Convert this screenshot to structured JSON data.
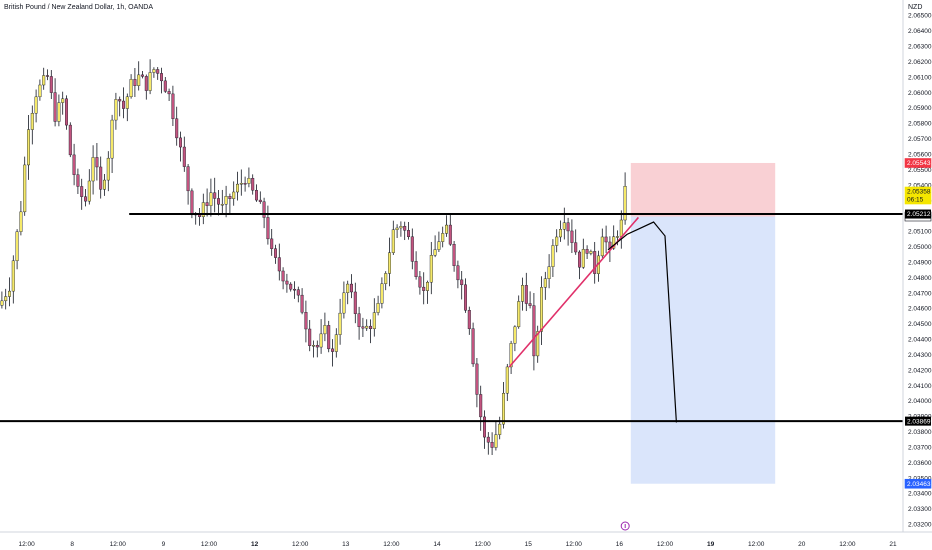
{
  "header": {
    "title": "British Pound / New Zealand Dollar, 1h, OANDA",
    "currency": "NZD"
  },
  "colors": {
    "bull_candle": "#f5e96a",
    "bear_candle": "#c2547f",
    "wick": "#131722",
    "level_line": "#000000",
    "trendline": "#e0306a",
    "stop_zone": "#f8c8cc",
    "target_zone": "#d6e2fb",
    "sell_tag": "#f23645",
    "price_tag": "#f5e600",
    "target_tag": "#2962ff",
    "marker": "#9c27b0"
  },
  "chart_data": {
    "type": "candlestick",
    "ylim": [
      2.0315,
      2.066
    ],
    "y_ticks": [
      {
        "value": 2.065,
        "label": "2.06500"
      },
      {
        "value": 2.064,
        "label": "2.06400"
      },
      {
        "value": 2.063,
        "label": "2.06300"
      },
      {
        "value": 2.062,
        "label": "2.06200"
      },
      {
        "value": 2.061,
        "label": "2.06100"
      },
      {
        "value": 2.06,
        "label": "2.06000"
      },
      {
        "value": 2.059,
        "label": "2.05900"
      },
      {
        "value": 2.058,
        "label": "2.05800"
      },
      {
        "value": 2.057,
        "label": "2.05700"
      },
      {
        "value": 2.056,
        "label": "2.05600"
      },
      {
        "value": 2.055,
        "label": "2.05500"
      },
      {
        "value": 2.054,
        "label": "2.05400"
      },
      {
        "value": 2.053,
        "label": "2.05300"
      },
      {
        "value": 2.052,
        "label": "2.05200"
      },
      {
        "value": 2.051,
        "label": "2.05100"
      },
      {
        "value": 2.05,
        "label": "2.05000"
      },
      {
        "value": 2.049,
        "label": "2.04900"
      },
      {
        "value": 2.048,
        "label": "2.04800"
      },
      {
        "value": 2.047,
        "label": "2.04700"
      },
      {
        "value": 2.046,
        "label": "2.04600"
      },
      {
        "value": 2.045,
        "label": "2.04500"
      },
      {
        "value": 2.044,
        "label": "2.04400"
      },
      {
        "value": 2.043,
        "label": "2.04300"
      },
      {
        "value": 2.042,
        "label": "2.04200"
      },
      {
        "value": 2.041,
        "label": "2.04100"
      },
      {
        "value": 2.04,
        "label": "2.04000"
      },
      {
        "value": 2.039,
        "label": "2.03900"
      },
      {
        "value": 2.038,
        "label": "2.03800"
      },
      {
        "value": 2.037,
        "label": "2.03700"
      },
      {
        "value": 2.036,
        "label": "2.03600"
      },
      {
        "value": 2.035,
        "label": "2.03500"
      },
      {
        "value": 2.034,
        "label": "2.03400"
      },
      {
        "value": 2.033,
        "label": "2.03300"
      },
      {
        "value": 2.032,
        "label": "2.03200"
      }
    ],
    "x_ticks": [
      {
        "index": 7,
        "label": "12:00",
        "bold": false
      },
      {
        "index": 19,
        "label": "8",
        "bold": false
      },
      {
        "index": 31,
        "label": "12:00",
        "bold": false
      },
      {
        "index": 43,
        "label": "9",
        "bold": false
      },
      {
        "index": 55,
        "label": "12:00",
        "bold": false
      },
      {
        "index": 67,
        "label": "12",
        "bold": true
      },
      {
        "index": 79,
        "label": "12:00",
        "bold": false
      },
      {
        "index": 91,
        "label": "13",
        "bold": false
      },
      {
        "index": 103,
        "label": "12:00",
        "bold": false
      },
      {
        "index": 115,
        "label": "14",
        "bold": false
      },
      {
        "index": 127,
        "label": "12:00",
        "bold": false
      },
      {
        "index": 139,
        "label": "15",
        "bold": false
      },
      {
        "index": 151,
        "label": "12:00",
        "bold": false
      },
      {
        "index": 163,
        "label": "16",
        "bold": false
      },
      {
        "index": 175,
        "label": "12:00",
        "bold": false
      },
      {
        "index": 187,
        "label": "19",
        "bold": true
      },
      {
        "index": 199,
        "label": "12:00",
        "bold": false
      },
      {
        "index": 211,
        "label": "20",
        "bold": false
      },
      {
        "index": 223,
        "label": "12:00",
        "bold": false
      },
      {
        "index": 235,
        "label": "21",
        "bold": false
      }
    ],
    "key_points": [
      [
        0,
        2.0465
      ],
      [
        2,
        2.0475
      ],
      [
        5,
        2.0525
      ],
      [
        7,
        2.058
      ],
      [
        9,
        2.06
      ],
      [
        12,
        2.061
      ],
      [
        14,
        2.0585
      ],
      [
        16,
        2.0595
      ],
      [
        18,
        2.056
      ],
      [
        20,
        2.0535
      ],
      [
        22,
        2.053
      ],
      [
        24,
        2.056
      ],
      [
        26,
        2.0535
      ],
      [
        28,
        2.056
      ],
      [
        30,
        2.06
      ],
      [
        32,
        2.059
      ],
      [
        34,
        2.0605
      ],
      [
        36,
        2.061
      ],
      [
        38,
        2.0605
      ],
      [
        40,
        2.0615
      ],
      [
        42,
        2.061
      ],
      [
        44,
        2.0598
      ],
      [
        46,
        2.0575
      ],
      [
        48,
        2.055
      ],
      [
        50,
        2.0525
      ],
      [
        52,
        2.052
      ],
      [
        55,
        2.0535
      ],
      [
        58,
        2.0525
      ],
      [
        61,
        2.0535
      ],
      [
        64,
        2.0545
      ],
      [
        67,
        2.053
      ],
      [
        69,
        2.052
      ],
      [
        71,
        2.0495
      ],
      [
        73,
        2.0485
      ],
      [
        75,
        2.0478
      ],
      [
        77,
        2.047
      ],
      [
        79,
        2.046
      ],
      [
        81,
        2.044
      ],
      [
        83,
        2.0435
      ],
      [
        85,
        2.0445
      ],
      [
        87,
        2.043
      ],
      [
        89,
        2.046
      ],
      [
        91,
        2.0475
      ],
      [
        93,
        2.0458
      ],
      [
        95,
        2.0445
      ],
      [
        97,
        2.045
      ],
      [
        99,
        2.046
      ],
      [
        101,
        2.0485
      ],
      [
        103,
        2.051
      ],
      [
        105,
        2.0515
      ],
      [
        107,
        2.0505
      ],
      [
        109,
        2.0485
      ],
      [
        111,
        2.047
      ],
      [
        113,
        2.049
      ],
      [
        115,
        2.0505
      ],
      [
        117,
        2.051
      ],
      [
        119,
        2.049
      ],
      [
        121,
        2.0475
      ],
      [
        123,
        2.045
      ],
      [
        125,
        2.0405
      ],
      [
        127,
        2.0375
      ],
      [
        129,
        2.0372
      ],
      [
        131,
        2.0385
      ],
      [
        133,
        2.042
      ],
      [
        135,
        2.045
      ],
      [
        137,
        2.0475
      ],
      [
        139,
        2.046
      ],
      [
        140,
        2.0425
      ],
      [
        142,
        2.047
      ],
      [
        144,
        2.049
      ],
      [
        146,
        2.051
      ],
      [
        148,
        2.052
      ],
      [
        150,
        2.0505
      ],
      [
        152,
        2.049
      ],
      [
        154,
        2.05
      ],
      [
        156,
        2.0485
      ],
      [
        158,
        2.051
      ],
      [
        160,
        2.0495
      ],
      [
        161,
        2.0505
      ],
      [
        163,
        2.0515
      ],
      [
        164,
        2.0535
      ]
    ],
    "last_index": 164,
    "levels": [
      {
        "name": "resistance",
        "value": 2.05212,
        "from_index": 34,
        "label": "2.05212"
      },
      {
        "name": "support",
        "value": 2.03869,
        "from_index": 0,
        "label": "2.03869"
      }
    ],
    "trendline": {
      "from": [
        134,
        2.0422
      ],
      "to": [
        168,
        2.0519
      ]
    },
    "projection": [
      [
        160,
        2.0498
      ],
      [
        165,
        2.0508
      ],
      [
        172,
        2.0516
      ],
      [
        175,
        2.0507
      ],
      [
        178,
        2.0386
      ]
    ],
    "position": {
      "from_index": 166,
      "to_index": 204,
      "entry": 2.05196,
      "stop": 2.05543,
      "target": 2.03463
    },
    "price_tags": [
      {
        "name": "stop-tag",
        "value": 2.05543,
        "label": "2.05543",
        "kind": "sell"
      },
      {
        "name": "current-price-tag",
        "value": 2.05358,
        "label": "2.05358",
        "sublabel": "06:15",
        "kind": "price"
      },
      {
        "name": "entry-tag",
        "value": 2.05196,
        "label": "2.05196",
        "kind": "neutral"
      },
      {
        "name": "target-tag",
        "value": 2.03463,
        "label": "2.03463",
        "kind": "target"
      }
    ],
    "event_marker": {
      "index": 164
    }
  }
}
